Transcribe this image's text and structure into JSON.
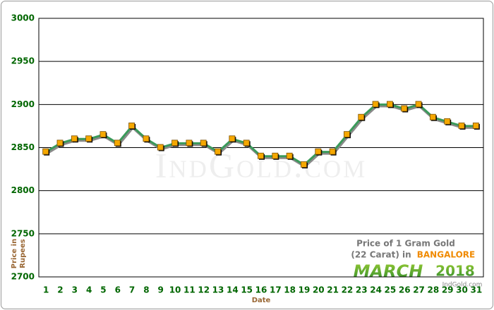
{
  "chart_data": {
    "type": "line",
    "categories": [
      "1",
      "2",
      "3",
      "4",
      "5",
      "6",
      "7",
      "8",
      "9",
      "10",
      "11",
      "12",
      "13",
      "14",
      "15",
      "16",
      "17",
      "18",
      "19",
      "20",
      "21",
      "22",
      "23",
      "24",
      "25",
      "26",
      "27",
      "28",
      "29",
      "30",
      "31"
    ],
    "values": [
      2845,
      2855,
      2860,
      2860,
      2865,
      2855,
      2875,
      2860,
      2850,
      2855,
      2855,
      2855,
      2845,
      2860,
      2855,
      2840,
      2840,
      2840,
      2830,
      2845,
      2845,
      2865,
      2885,
      2900,
      2900,
      2895,
      2900,
      2885,
      2880,
      2875,
      2875
    ],
    "color": "#3a9a5a",
    "marker_color": "#f5a800",
    "ylim": [
      2700,
      3000
    ],
    "yticks": [
      2700,
      2750,
      2800,
      2850,
      2900,
      2950,
      3000
    ],
    "grid": true,
    "x_label": "Date",
    "y_label": [
      "Price in",
      "Rupees"
    ],
    "watermark": "IndGold.com",
    "annotations": {
      "line1": "Price of 1 Gram Gold",
      "line2": "(22 Carat) in",
      "city": "BANGALORE",
      "month": "MARCH",
      "year": "2018",
      "site": "IndGold.com"
    }
  }
}
